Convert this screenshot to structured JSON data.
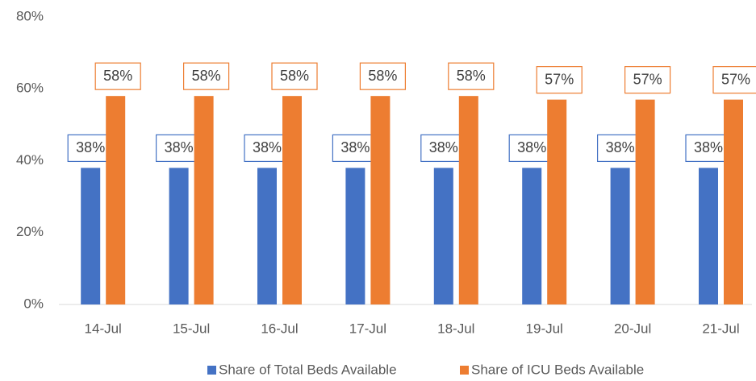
{
  "chart_data": {
    "type": "bar",
    "categories": [
      "14-Jul",
      "15-Jul",
      "16-Jul",
      "17-Jul",
      "18-Jul",
      "19-Jul",
      "20-Jul",
      "21-Jul"
    ],
    "series": [
      {
        "name": "Share of Total Beds Available",
        "color": "#4472c4",
        "values": [
          38,
          38,
          38,
          38,
          38,
          38,
          38,
          38
        ],
        "value_labels": [
          "38%",
          "38%",
          "38%",
          "38%",
          "38%",
          "38%",
          "38%",
          "38%"
        ]
      },
      {
        "name": "Share of ICU Beds Available",
        "color": "#ed7d31",
        "values": [
          58,
          58,
          58,
          58,
          58,
          57,
          57,
          57
        ],
        "value_labels": [
          "58%",
          "58%",
          "58%",
          "58%",
          "58%",
          "57%",
          "57%",
          "57%"
        ]
      }
    ],
    "ylim": [
      0,
      80
    ],
    "yticks": [
      {
        "value": 0,
        "label": "0%"
      },
      {
        "value": 20,
        "label": "20%"
      },
      {
        "value": 40,
        "label": "40%"
      },
      {
        "value": 60,
        "label": "60%"
      },
      {
        "value": 80,
        "label": "80%"
      }
    ],
    "grid": false,
    "legend": "bottom"
  }
}
